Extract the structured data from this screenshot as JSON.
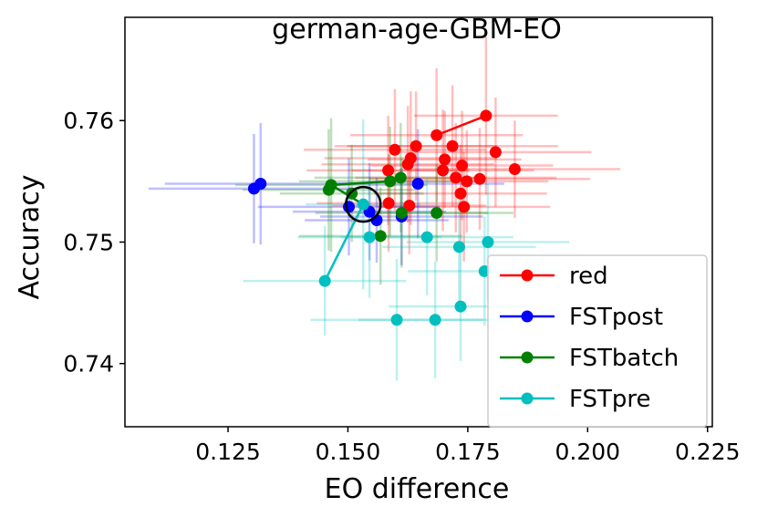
{
  "chart_data": {
    "type": "scatter",
    "title": "german-age-GBM-EO",
    "xlabel": "EO difference",
    "ylabel": "Accuracy",
    "xlim": [
      0.1035,
      0.226
    ],
    "ylim": [
      0.7348,
      0.7685
    ],
    "xticks": [
      0.125,
      0.15,
      0.175,
      0.2,
      0.225
    ],
    "xtick_labels": [
      "0.125",
      "0.150",
      "0.175",
      "0.200",
      "0.225"
    ],
    "yticks": [
      0.74,
      0.75,
      0.76
    ],
    "ytick_labels": [
      "0.74",
      "0.75",
      "0.76"
    ],
    "grid": false,
    "legend_position": "lower-right",
    "highlight_circle": {
      "x": 0.1532,
      "y": 0.7531
    },
    "series": [
      {
        "name": "red",
        "color": "#ff0000",
        "line_x": [
          0.1685,
          0.1788
        ],
        "line_y": [
          0.7588,
          0.7604
        ],
        "points": [
          {
            "x": 0.1788,
            "y": 0.7604,
            "xerr": 0.015,
            "yerr": 0.0065
          },
          {
            "x": 0.1685,
            "y": 0.7588,
            "xerr": 0.018,
            "yerr": 0.0055
          },
          {
            "x": 0.1808,
            "y": 0.7574,
            "xerr": 0.02,
            "yerr": 0.0045
          },
          {
            "x": 0.1598,
            "y": 0.7576,
            "xerr": 0.019,
            "yerr": 0.005
          },
          {
            "x": 0.1642,
            "y": 0.7579,
            "xerr": 0.017,
            "yerr": 0.0045
          },
          {
            "x": 0.1718,
            "y": 0.7579,
            "xerr": 0.022,
            "yerr": 0.005
          },
          {
            "x": 0.1631,
            "y": 0.7569,
            "xerr": 0.018,
            "yerr": 0.0055
          },
          {
            "x": 0.1702,
            "y": 0.7568,
            "xerr": 0.016,
            "yerr": 0.004
          },
          {
            "x": 0.1625,
            "y": 0.7564,
            "xerr": 0.018,
            "yerr": 0.0048
          },
          {
            "x": 0.1738,
            "y": 0.7563,
            "xerr": 0.019,
            "yerr": 0.0045
          },
          {
            "x": 0.1848,
            "y": 0.756,
            "xerr": 0.022,
            "yerr": 0.004
          },
          {
            "x": 0.1584,
            "y": 0.7559,
            "xerr": 0.017,
            "yerr": 0.0045
          },
          {
            "x": 0.1698,
            "y": 0.7559,
            "xerr": 0.019,
            "yerr": 0.005
          },
          {
            "x": 0.1725,
            "y": 0.7553,
            "xerr": 0.021,
            "yerr": 0.0045
          },
          {
            "x": 0.1775,
            "y": 0.7552,
            "xerr": 0.023,
            "yerr": 0.0042
          },
          {
            "x": 0.1748,
            "y": 0.755,
            "xerr": 0.017,
            "yerr": 0.0042
          },
          {
            "x": 0.1735,
            "y": 0.754,
            "xerr": 0.018,
            "yerr": 0.004
          },
          {
            "x": 0.1628,
            "y": 0.753,
            "xerr": 0.016,
            "yerr": 0.004
          },
          {
            "x": 0.1742,
            "y": 0.7529,
            "xerr": 0.018,
            "yerr": 0.0045
          },
          {
            "x": 0.1585,
            "y": 0.7532,
            "xerr": 0.015,
            "yerr": 0.004
          }
        ]
      },
      {
        "name": "FSTpost",
        "color": "#0000ff",
        "line_x": [
          0.1532,
          0.1545,
          0.156
        ],
        "line_y": [
          0.7531,
          0.7525,
          0.7518
        ],
        "points": [
          {
            "x": 0.1318,
            "y": 0.7548,
            "xerr": 0.02,
            "yerr": 0.005
          },
          {
            "x": 0.1304,
            "y": 0.7544,
            "xerr": 0.022,
            "yerr": 0.0045
          },
          {
            "x": 0.1646,
            "y": 0.7548,
            "xerr": 0.018,
            "yerr": 0.0045
          },
          {
            "x": 0.1502,
            "y": 0.7529,
            "xerr": 0.019,
            "yerr": 0.004
          },
          {
            "x": 0.1545,
            "y": 0.7525,
            "xerr": 0.016,
            "yerr": 0.004
          },
          {
            "x": 0.1612,
            "y": 0.7521,
            "xerr": 0.017,
            "yerr": 0.004
          },
          {
            "x": 0.156,
            "y": 0.7518,
            "xerr": 0.015,
            "yerr": 0.0035
          }
        ]
      },
      {
        "name": "FSTbatch",
        "color": "#008000",
        "line_x": [
          0.1532,
          0.1465,
          0.1588,
          0.161
        ],
        "line_y": [
          0.7531,
          0.7547,
          0.755,
          0.7553
        ],
        "points": [
          {
            "x": 0.1465,
            "y": 0.7547,
            "xerr": 0.02,
            "yerr": 0.0055
          },
          {
            "x": 0.146,
            "y": 0.7543,
            "xerr": 0.018,
            "yerr": 0.005
          },
          {
            "x": 0.1588,
            "y": 0.755,
            "xerr": 0.019,
            "yerr": 0.0045
          },
          {
            "x": 0.161,
            "y": 0.7553,
            "xerr": 0.018,
            "yerr": 0.0045
          },
          {
            "x": 0.1508,
            "y": 0.754,
            "xerr": 0.015,
            "yerr": 0.004
          },
          {
            "x": 0.1612,
            "y": 0.7524,
            "xerr": 0.018,
            "yerr": 0.0045
          },
          {
            "x": 0.1685,
            "y": 0.7524,
            "xerr": 0.016,
            "yerr": 0.004
          },
          {
            "x": 0.1568,
            "y": 0.7505,
            "xerr": 0.017,
            "yerr": 0.004
          }
        ]
      },
      {
        "name": "FSTpre",
        "color": "#00bfbf",
        "line_x": [
          0.1532,
          0.1452
        ],
        "line_y": [
          0.7531,
          0.7468
        ],
        "points": [
          {
            "x": 0.1532,
            "y": 0.7531,
            "xerr": 0.012,
            "yerr": 0.007
          },
          {
            "x": 0.1452,
            "y": 0.7468,
            "xerr": 0.017,
            "yerr": 0.0045
          },
          {
            "x": 0.1545,
            "y": 0.7504,
            "xerr": 0.015,
            "yerr": 0.005
          },
          {
            "x": 0.1665,
            "y": 0.7504,
            "xerr": 0.018,
            "yerr": 0.0048
          },
          {
            "x": 0.1732,
            "y": 0.7496,
            "xerr": 0.016,
            "yerr": 0.0045
          },
          {
            "x": 0.1792,
            "y": 0.75,
            "xerr": 0.017,
            "yerr": 0.0048
          },
          {
            "x": 0.1785,
            "y": 0.7476,
            "xerr": 0.016,
            "yerr": 0.0045
          },
          {
            "x": 0.1735,
            "y": 0.7447,
            "xerr": 0.015,
            "yerr": 0.0045
          },
          {
            "x": 0.1602,
            "y": 0.7436,
            "xerr": 0.018,
            "yerr": 0.005
          },
          {
            "x": 0.1682,
            "y": 0.7436,
            "xerr": 0.016,
            "yerr": 0.0048
          }
        ]
      }
    ]
  }
}
